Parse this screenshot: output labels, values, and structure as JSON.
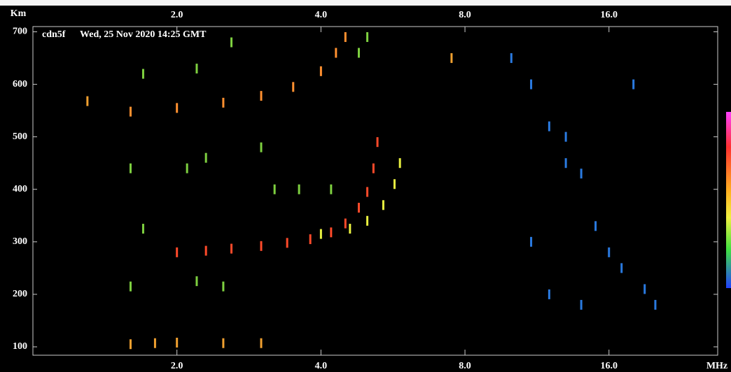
{
  "chart_data": {
    "type": "scatter",
    "station": "cdn5f",
    "title": "Wed, 25 Nov 2020 14:25 GMT",
    "y_label": "Km",
    "x_label": "MHz",
    "log_x": true,
    "xlim": [
      1,
      27
    ],
    "ylim": [
      84,
      710
    ],
    "xticks": [
      {
        "value": 2,
        "label": "2.0"
      },
      {
        "value": 4,
        "label": "4.0"
      },
      {
        "value": 8,
        "label": "8.0"
      },
      {
        "value": 16,
        "label": "16.0"
      }
    ],
    "yticks": [
      100,
      200,
      300,
      400,
      500,
      600,
      700
    ],
    "series": [
      {
        "color": "#ff4a2a",
        "x": [
          2.0,
          2.3,
          2.6,
          3.0,
          3.4,
          3.8,
          4.2,
          4.5,
          4.8,
          5.0,
          5.15,
          5.25
        ],
        "values": [
          280,
          283,
          287,
          292,
          298,
          305,
          318,
          335,
          365,
          395,
          440,
          490
        ]
      },
      {
        "color": "#e8f040",
        "x": [
          4.0,
          4.6,
          5.0,
          5.4,
          5.7,
          5.85
        ],
        "values": [
          315,
          325,
          340,
          370,
          410,
          450
        ]
      },
      {
        "color": "#ff9030",
        "x": [
          1.6,
          2.0,
          2.5,
          3.0,
          3.5,
          4.0,
          4.3,
          4.5
        ],
        "values": [
          548,
          555,
          565,
          578,
          595,
          625,
          660,
          690
        ]
      },
      {
        "color": "#7ed040",
        "x": [
          1.6,
          1.7,
          1.7,
          2.1,
          2.3,
          2.2,
          3.2,
          3.6,
          4.2,
          1.6,
          2.2,
          2.5,
          4.8,
          5.0,
          3.0,
          2.6
        ],
        "values": [
          440,
          325,
          620,
          440,
          460,
          630,
          400,
          400,
          400,
          215,
          225,
          215,
          660,
          690,
          480,
          680
        ]
      },
      {
        "color": "#f0a030",
        "x": [
          1.6,
          1.8,
          2.0,
          2.5,
          3.0,
          1.3,
          7.5
        ],
        "values": [
          105,
          107,
          108,
          107,
          107,
          568,
          650
        ]
      },
      {
        "color": "#2a7ae0",
        "x": [
          10,
          11,
          12,
          13,
          14,
          15,
          16,
          12,
          14,
          17,
          18,
          19,
          20,
          11,
          13
        ],
        "values": [
          650,
          600,
          520,
          500,
          430,
          330,
          280,
          200,
          180,
          250,
          600,
          210,
          180,
          300,
          450
        ]
      }
    ]
  }
}
